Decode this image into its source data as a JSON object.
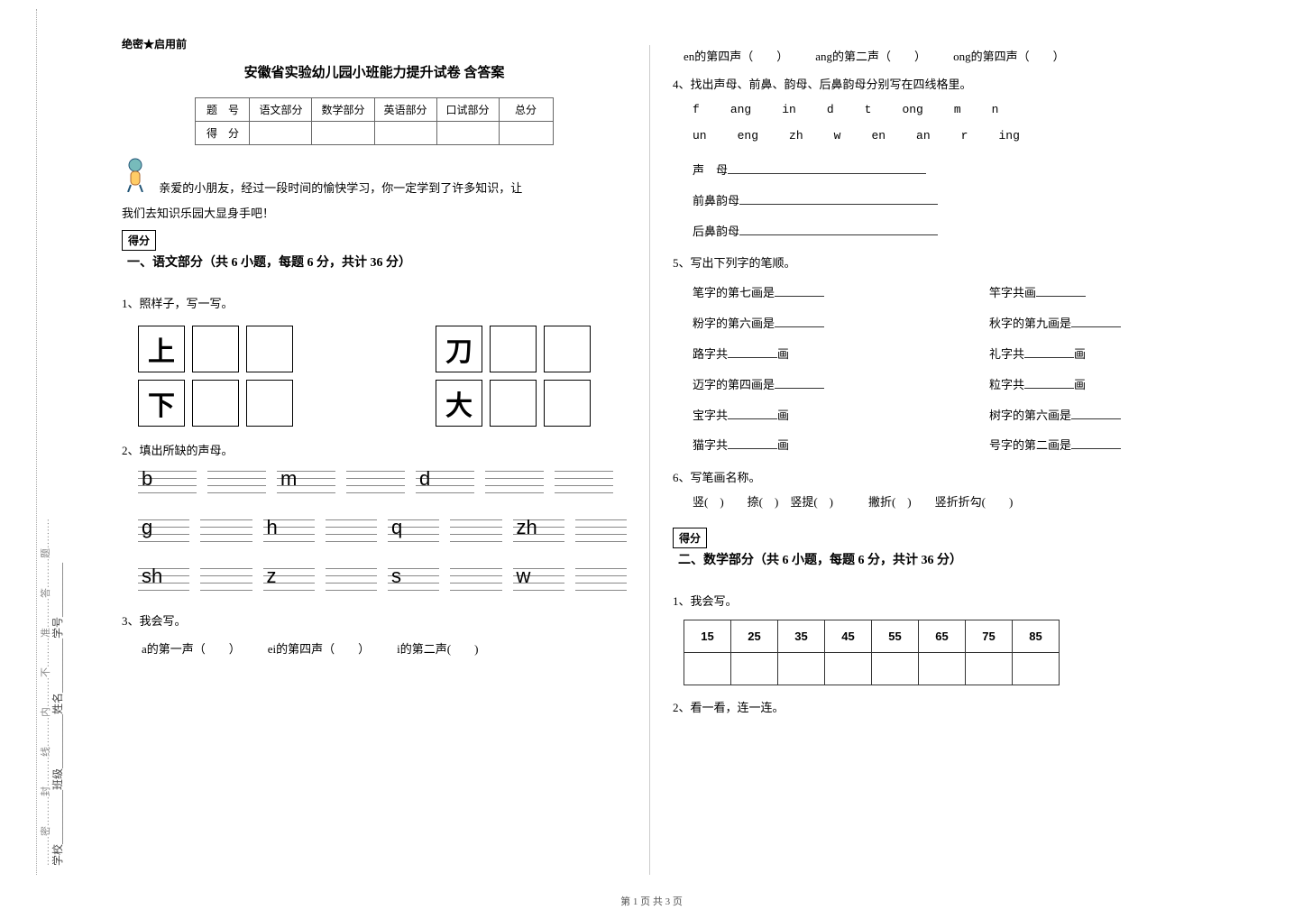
{
  "secret": "绝密★启用前",
  "title": "安徽省实验幼儿园小班能力提升试卷 含答案",
  "score_headers": [
    "题　号",
    "语文部分",
    "数学部分",
    "英语部分",
    "口试部分",
    "总分"
  ],
  "score_row2": "得　分",
  "intro1": "亲爱的小朋友，经过一段时间的愉快学习，你一定学到了许多知识，让",
  "intro2": "我们去知识乐园大显身手吧！",
  "score_box": "得分",
  "sec1_title": "一、语文部分（共 6 小题，每题 6 分，共计 36 分）",
  "q1": "1、照样子，写一写。",
  "chars_left": [
    "上",
    "下"
  ],
  "chars_right": [
    "刀",
    "大"
  ],
  "q2": "2、填出所缺的声母。",
  "cons_rows": [
    [
      "b",
      "",
      "m",
      "",
      "d",
      "",
      ""
    ],
    [
      "g",
      "",
      "h",
      "",
      "q",
      "",
      "zh",
      ""
    ],
    [
      "sh",
      "",
      "z",
      "",
      "s",
      "",
      "w",
      ""
    ]
  ],
  "q3": "3、我会写。",
  "q3_items": [
    "a的第一声（　　）",
    "ei的第四声（　　）",
    "i的第二声(　　)"
  ],
  "q3b_items": [
    "en的第四声（　　）",
    "ang的第二声（　　）",
    "ong的第四声（　　）"
  ],
  "q4": "4、找出声母、前鼻、韵母、后鼻韵母分别写在四线格里。",
  "q4_row1": [
    "f",
    "ang",
    "in",
    "d",
    "t",
    "ong",
    "m",
    "n"
  ],
  "q4_row2": [
    "un",
    "eng",
    "zh",
    "w",
    "en",
    "an",
    "r",
    "ing"
  ],
  "q4_lbl1": "声　母",
  "q4_lbl2": "前鼻韵母",
  "q4_lbl3": "后鼻韵母",
  "q5": "5、写出下列字的笔顺。",
  "q5_left": [
    "笔字的第七画是________",
    "粉字的第六画是________",
    "路字共________画",
    "迈字的第四画是________",
    "宝字共________画",
    "猫字共________画"
  ],
  "q5_right": [
    "竿字共画________",
    "秋字的第九画是________",
    "礼字共________画",
    "粒字共________画",
    "树字的第六画是________",
    "号字的第二画是________"
  ],
  "q6": "6、写笔画名称。",
  "q6_items": "竖(　)　　捺(　)　竖提(　)　　　撇折(　)　　竖折折勾(　　)",
  "sec2_title": "二、数学部分（共 6 小题，每题 6 分，共计 36 分）",
  "m1": "1、我会写。",
  "m1_nums": [
    "15",
    "25",
    "35",
    "45",
    "55",
    "65",
    "75",
    "85"
  ],
  "m2": "2、看一看，连一连。",
  "footer": "第 1 页 共 3 页",
  "binding_text": "学校__________班级__________姓名__________学号__________",
  "binding_note": "………密………封………线………内………不………准………答………题………"
}
